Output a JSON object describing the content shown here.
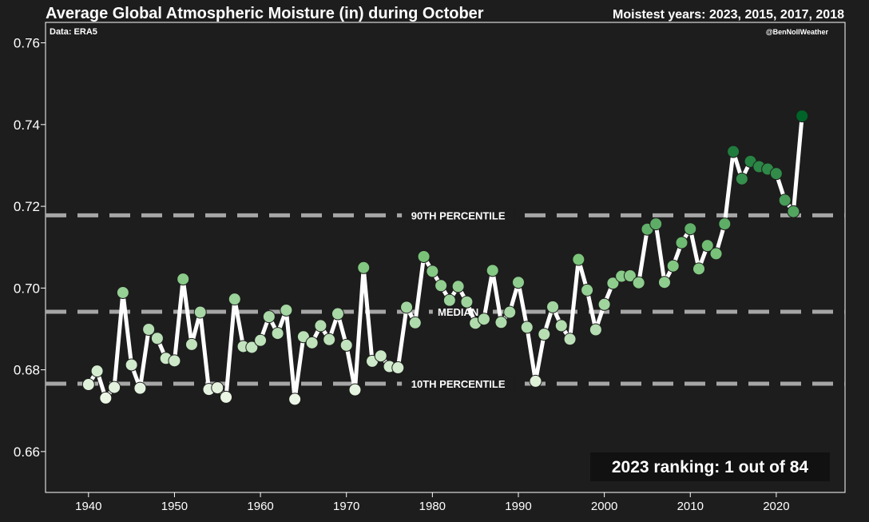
{
  "header": {
    "title": "Average Global Atmospheric Moisture (in) during October",
    "subtitle": "Moistest years: 2023, 2015, 2017, 2018",
    "source": "Data: ERA5",
    "credit": "@BenNollWeather",
    "ranking": "2023 ranking: 1 out of 84"
  },
  "colors": {
    "background": "#1d1d1d",
    "line": "#ffffff",
    "reference_line": "#a6a6a6",
    "ranking_box": "#111111"
  },
  "chart_data": {
    "type": "line",
    "title": "Average Global Atmospheric Moisture (in) during October",
    "xlim": [
      1935,
      2028
    ],
    "ylim": [
      0.65,
      0.765
    ],
    "x_ticks": [
      1940,
      1950,
      1960,
      1970,
      1980,
      1990,
      2000,
      2010,
      2020
    ],
    "y_ticks": [
      0.66,
      0.68,
      0.7,
      0.72,
      0.74,
      0.76
    ],
    "y_tick_labels": [
      "0.66",
      "0.68",
      "0.70",
      "0.72",
      "0.74",
      "0.76"
    ],
    "grid": false,
    "reference_lines": [
      {
        "label": "90TH PERCENTILE",
        "value": 0.7178
      },
      {
        "label": "MEDIAN",
        "value": 0.6942
      },
      {
        "label": "10TH PERCENTILE",
        "value": 0.6766
      }
    ],
    "x": [
      1940,
      1941,
      1942,
      1943,
      1944,
      1945,
      1946,
      1947,
      1948,
      1949,
      1950,
      1951,
      1952,
      1953,
      1954,
      1955,
      1956,
      1957,
      1958,
      1959,
      1960,
      1961,
      1962,
      1963,
      1964,
      1965,
      1966,
      1967,
      1968,
      1969,
      1970,
      1971,
      1972,
      1973,
      1974,
      1975,
      1976,
      1977,
      1978,
      1979,
      1980,
      1981,
      1982,
      1983,
      1984,
      1985,
      1986,
      1987,
      1988,
      1989,
      1990,
      1991,
      1992,
      1993,
      1994,
      1995,
      1996,
      1997,
      1998,
      1999,
      2000,
      2001,
      2002,
      2003,
      2004,
      2005,
      2006,
      2007,
      2008,
      2009,
      2010,
      2011,
      2012,
      2013,
      2014,
      2015,
      2016,
      2017,
      2018,
      2019,
      2020,
      2021,
      2022,
      2023
    ],
    "values": [
      0.6764,
      0.6797,
      0.6731,
      0.6757,
      0.6989,
      0.6812,
      0.6755,
      0.6899,
      0.6877,
      0.6828,
      0.6822,
      0.7022,
      0.6862,
      0.6941,
      0.6752,
      0.6756,
      0.6733,
      0.6973,
      0.6857,
      0.6855,
      0.6872,
      0.693,
      0.6889,
      0.6946,
      0.6728,
      0.6881,
      0.6866,
      0.6908,
      0.6874,
      0.6937,
      0.686,
      0.6751,
      0.705,
      0.6821,
      0.6834,
      0.6808,
      0.6805,
      0.6953,
      0.6915,
      0.7077,
      0.7041,
      0.7006,
      0.697,
      0.7004,
      0.6966,
      0.6914,
      0.6924,
      0.7043,
      0.6916,
      0.6941,
      0.7014,
      0.6904,
      0.6772,
      0.6887,
      0.6954,
      0.6908,
      0.6875,
      0.707,
      0.6995,
      0.6898,
      0.696,
      0.7012,
      0.7029,
      0.703,
      0.7013,
      0.7144,
      0.7157,
      0.7014,
      0.7054,
      0.7111,
      0.7145,
      0.7047,
      0.7104,
      0.7084,
      0.7157,
      0.7334,
      0.7267,
      0.731,
      0.7297,
      0.7291,
      0.728,
      0.7215,
      0.7187,
      0.7421
    ]
  }
}
